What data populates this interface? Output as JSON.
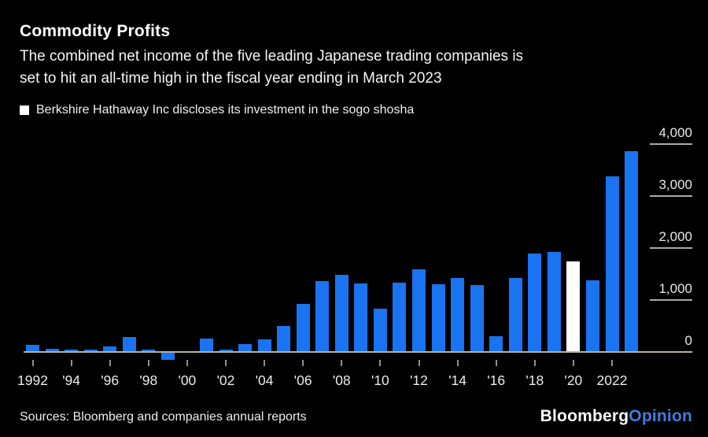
{
  "header": {
    "title": "Commodity Profits",
    "subtitle_lines": [
      "The combined net income of the five leading Japanese trading companies is",
      "set to hit an all-time high in the fiscal year ending in March 2023"
    ],
    "legend_label": "Berkshire Hathaway Inc discloses its investment in the sogo shosha"
  },
  "chart_data": {
    "type": "bar",
    "title": "Commodity Profits",
    "x": [
      1992,
      1993,
      1994,
      1995,
      1996,
      1997,
      1998,
      1999,
      2000,
      2001,
      2002,
      2003,
      2004,
      2005,
      2006,
      2007,
      2008,
      2009,
      2010,
      2011,
      2012,
      2013,
      2014,
      2015,
      2016,
      2017,
      2018,
      2019,
      2020,
      2021,
      2022,
      2023
    ],
    "values": [
      130,
      60,
      50,
      40,
      110,
      290,
      50,
      -140,
      15,
      260,
      45,
      145,
      250,
      500,
      930,
      1360,
      1480,
      1320,
      830,
      1330,
      1590,
      1300,
      1420,
      1290,
      310,
      1430,
      1890,
      1925,
      1745,
      1380,
      3380,
      3870
    ],
    "highlight_year": 2020,
    "highlight_note": "Berkshire Hathaway Inc discloses its investment in the sogo shosha",
    "bar_color": "#1a73f0",
    "highlight_color": "#ffffff",
    "xlabel": "",
    "ylabel": "",
    "ylim": [
      -300,
      4000
    ],
    "yticks": [
      0,
      1000,
      2000,
      3000,
      4000
    ],
    "ytick_labels": [
      "0",
      "1,000",
      "2,000",
      "3,000",
      "4,000"
    ],
    "xtick_years": [
      1992,
      1994,
      1996,
      1998,
      2000,
      2002,
      2004,
      2006,
      2008,
      2010,
      2012,
      2014,
      2016,
      2018,
      2020,
      2022
    ],
    "xtick_labels": [
      "1992",
      "'94",
      "'96",
      "'98",
      "'00",
      "'02",
      "'04",
      "'06",
      "'08",
      "'10",
      "'12",
      "'14",
      "'16",
      "'18",
      "'20",
      "2022"
    ],
    "grid": "right-side tick stubs only",
    "legend_position": "top-left"
  },
  "footer": {
    "sources": "Sources: Bloomberg and companies annual reports",
    "logo_bloomberg": "Bloomberg",
    "logo_opinion": "Opinion"
  },
  "colors": {
    "background": "#000000",
    "bar_blue": "#1a73f0",
    "highlight_white": "#ffffff",
    "axis_line": "#b8b1a2",
    "opinion_blue": "#3e7edd",
    "text": "#f5f5f5"
  }
}
